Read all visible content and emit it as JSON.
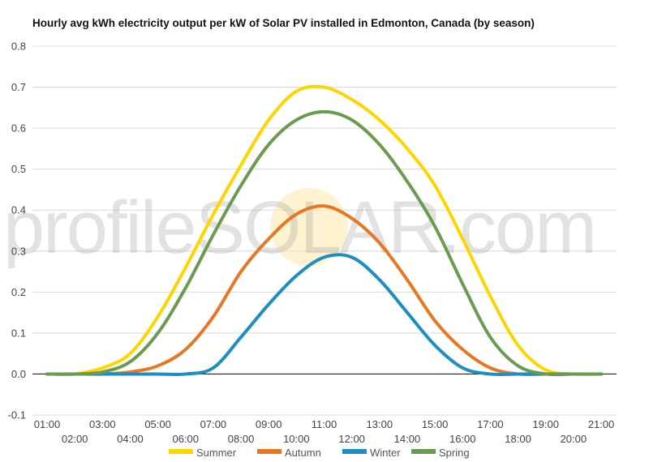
{
  "chart_data": {
    "type": "line",
    "title": "Hourly avg kWh electricity output per kW of Solar PV installed in Edmonton, Canada (by season)",
    "watermark": "profileSOLAR.com",
    "xlabel": "",
    "ylabel": "",
    "ylim": [
      -0.1,
      0.8
    ],
    "y_ticks": [
      "-0.1",
      "0.0",
      "0.1",
      "0.2",
      "0.3",
      "0.4",
      "0.5",
      "0.6",
      "0.7",
      "0.8"
    ],
    "grid": true,
    "legend_position": "bottom",
    "categories": [
      "01:00",
      "02:00",
      "03:00",
      "04:00",
      "05:00",
      "06:00",
      "07:00",
      "08:00",
      "09:00",
      "10:00",
      "11:00",
      "12:00",
      "13:00",
      "14:00",
      "15:00",
      "16:00",
      "17:00",
      "18:00",
      "19:00",
      "20:00",
      "21:00"
    ],
    "series": [
      {
        "name": "Summer",
        "color": "#ffd500",
        "values": [
          0.0,
          0.0,
          0.015,
          0.05,
          0.14,
          0.26,
          0.39,
          0.51,
          0.62,
          0.69,
          0.7,
          0.67,
          0.62,
          0.55,
          0.46,
          0.33,
          0.19,
          0.07,
          0.01,
          0.0,
          0.0
        ]
      },
      {
        "name": "Autumn",
        "color": "#e87722",
        "values": [
          0.0,
          0.0,
          0.0,
          0.005,
          0.02,
          0.06,
          0.14,
          0.25,
          0.33,
          0.39,
          0.41,
          0.38,
          0.32,
          0.23,
          0.13,
          0.06,
          0.015,
          0.0,
          0.0,
          0.0,
          0.0
        ]
      },
      {
        "name": "Winter",
        "color": "#1b8fc2",
        "values": [
          0.0,
          0.0,
          0.0,
          0.0,
          0.0,
          0.0,
          0.015,
          0.09,
          0.17,
          0.24,
          0.285,
          0.285,
          0.23,
          0.15,
          0.07,
          0.015,
          0.0,
          0.0,
          0.0,
          0.0,
          0.0
        ]
      },
      {
        "name": "Spring",
        "color": "#6b9b4e",
        "values": [
          0.0,
          0.0,
          0.005,
          0.03,
          0.1,
          0.21,
          0.34,
          0.46,
          0.56,
          0.62,
          0.64,
          0.62,
          0.56,
          0.47,
          0.36,
          0.22,
          0.09,
          0.02,
          0.0,
          0.0,
          0.0
        ]
      }
    ]
  }
}
